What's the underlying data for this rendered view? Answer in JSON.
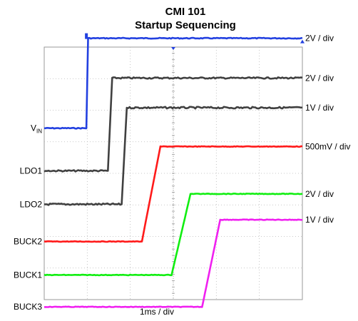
{
  "title": {
    "line1": "CMI  101",
    "line2": "Startup Sequencing"
  },
  "x_scale_label": "1ms / div",
  "chart_data": {
    "type": "line",
    "title": "CMI  101 Startup Sequencing",
    "subtitle": "",
    "xlabel": "1ms / div",
    "ylabel": "",
    "x_unit": "divisions (1ms / div)",
    "xlim": [
      0,
      6
    ],
    "grid": true,
    "grid_divisions": {
      "x": 6,
      "y": 8
    },
    "series": [
      {
        "name": "V_IN",
        "label_main": "V",
        "label_sub": "IN",
        "scale": "2V / div",
        "color": "#2240e0",
        "noise": 0.6,
        "low_level": 5.43,
        "high_level": 8.28,
        "x": [
          0,
          0.98,
          1.02,
          6.0
        ],
        "y": [
          5.43,
          5.43,
          8.28,
          8.28
        ]
      },
      {
        "name": "LDO1",
        "label_main": "LDO1",
        "label_sub": "",
        "scale": "2V / div",
        "color": "#404040",
        "noise": 1.0,
        "low_level": 4.08,
        "high_level": 7.02,
        "x": [
          0,
          1.48,
          1.58,
          6.0
        ],
        "y": [
          4.08,
          4.08,
          7.02,
          7.02
        ]
      },
      {
        "name": "LDO2",
        "label_main": "LDO2",
        "label_sub": "",
        "scale": "1V / div",
        "color": "#404040",
        "noise": 1.2,
        "low_level": 3.02,
        "high_level": 6.08,
        "x": [
          0,
          1.8,
          1.92,
          6.0
        ],
        "y": [
          3.02,
          3.02,
          6.08,
          6.08
        ]
      },
      {
        "name": "BUCK2",
        "label_main": "BUCK2",
        "label_sub": "",
        "scale": "500mV / div",
        "color": "#ff1a1a",
        "noise": 0.4,
        "low_level": 1.84,
        "high_level": 4.85,
        "x": [
          0,
          2.27,
          2.7,
          6.0
        ],
        "y": [
          1.84,
          1.84,
          4.85,
          4.85
        ]
      },
      {
        "name": "BUCK1",
        "label_main": "BUCK1",
        "label_sub": "",
        "scale": "2V / div",
        "color": "#10ee10",
        "noise": 0.4,
        "low_level": 0.78,
        "high_level": 3.35,
        "x": [
          0,
          2.96,
          3.4,
          6.0
        ],
        "y": [
          0.78,
          0.78,
          3.35,
          3.35
        ]
      },
      {
        "name": "BUCK3",
        "label_main": "BUCK3",
        "label_sub": "",
        "scale": "1V / div",
        "color": "#f020f0",
        "noise": 0.4,
        "low_level": -0.23,
        "high_level": 2.53,
        "x": [
          0,
          3.67,
          4.09,
          6.0
        ],
        "y": [
          -0.23,
          -0.23,
          2.53,
          2.53
        ]
      }
    ]
  }
}
